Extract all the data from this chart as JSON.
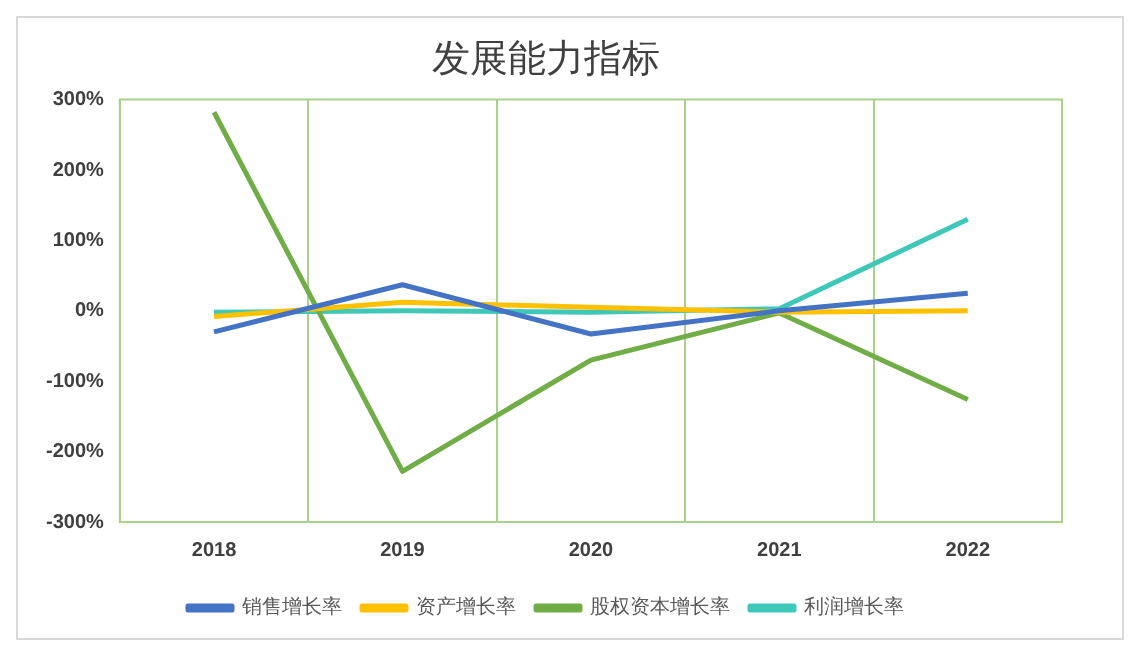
{
  "chart_data": {
    "type": "line",
    "title": "发展能力指标",
    "categories": [
      "2018",
      "2019",
      "2020",
      "2021",
      "2022"
    ],
    "series": [
      {
        "name": "销售增长率",
        "color": "#4472c4",
        "values": [
          -30,
          37,
          -33,
          0,
          25
        ]
      },
      {
        "name": "资产增长率",
        "color": "#ffc000",
        "values": [
          -8,
          12,
          5,
          -2,
          0
        ]
      },
      {
        "name": "股权资本增长率",
        "color": "#70ad47",
        "values": [
          282,
          -228,
          -70,
          -3,
          -126
        ]
      },
      {
        "name": "利润增长率",
        "color": "#3fc7b8",
        "values": [
          -2,
          0,
          -2,
          3,
          130
        ]
      }
    ],
    "ylim": [
      -300,
      300
    ],
    "yticks": [
      {
        "value": -300,
        "label": "-300%"
      },
      {
        "value": -200,
        "label": "-200%"
      },
      {
        "value": -100,
        "label": "-100%"
      },
      {
        "value": 0,
        "label": "0%"
      },
      {
        "value": 100,
        "label": "100%"
      },
      {
        "value": 200,
        "label": "200%"
      },
      {
        "value": 300,
        "label": "300%"
      }
    ],
    "grid": "x",
    "legend": "bottom",
    "marker": "none",
    "line_style": "solid"
  }
}
